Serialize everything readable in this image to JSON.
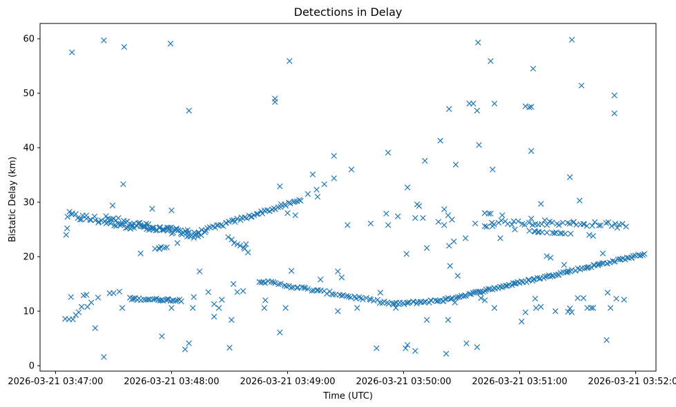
{
  "chart_data": {
    "type": "scatter",
    "title": "Detections in Delay",
    "xlabel": "Time (UTC)",
    "ylabel": "Bistatic Delay (km)",
    "marker": "x",
    "color": "#1f77b4",
    "grid": false,
    "x_unit": "seconds since 2026-03-21 03:47:00",
    "xlim": [
      -8.0,
      310.5
    ],
    "ylim": [
      -1.0,
      62.8
    ],
    "xticks": [
      {
        "value": 0,
        "label": "2026-03-21 03:47:00"
      },
      {
        "value": 60,
        "label": "2026-03-21 03:48:00"
      },
      {
        "value": 120,
        "label": "2026-03-21 03:49:00"
      },
      {
        "value": 180,
        "label": "2026-03-21 03:50:00"
      },
      {
        "value": 240,
        "label": "2026-03-21 03:51:00"
      },
      {
        "value": 300,
        "label": "2026-03-21 03:52:00"
      }
    ],
    "yticks": [
      {
        "value": 0,
        "label": "0"
      },
      {
        "value": 10,
        "label": "10"
      },
      {
        "value": 20,
        "label": "20"
      },
      {
        "value": 30,
        "label": "30"
      },
      {
        "value": 40,
        "label": "40"
      },
      {
        "value": 50,
        "label": "50"
      },
      {
        "value": 60,
        "label": "60"
      }
    ],
    "tracks": [
      {
        "name": "upper-track-A",
        "x_start": 6,
        "x_end": 68,
        "y_start": 27.6,
        "y_end": 24.2,
        "count": 60,
        "jitter": 0.7
      },
      {
        "name": "upper-track-A2",
        "x_start": 26,
        "x_end": 75,
        "y_start": 27.0,
        "y_end": 23.8,
        "count": 40,
        "jitter": 0.6
      },
      {
        "name": "upper-track-rising",
        "x_start": 68,
        "x_end": 127,
        "y_start": 23.8,
        "y_end": 30.4,
        "count": 55,
        "jitter": 0.3
      },
      {
        "name": "cluster-21",
        "x_start": 52,
        "x_end": 57,
        "y_start": 21.6,
        "y_end": 21.6,
        "count": 6,
        "jitter": 0.2
      },
      {
        "name": "cluster-23",
        "x_start": 89,
        "x_end": 100,
        "y_start": 23.4,
        "y_end": 21.0,
        "count": 8,
        "jitter": 0.3
      },
      {
        "name": "middle-constant-26",
        "x_start": 225,
        "x_end": 295,
        "y_start": 26.3,
        "y_end": 25.9,
        "count": 40,
        "jitter": 0.4
      },
      {
        "name": "middle-constant-24",
        "x_start": 245,
        "x_end": 266,
        "y_start": 24.6,
        "y_end": 24.2,
        "count": 10,
        "jitter": 0.2
      },
      {
        "name": "lower-track-12",
        "x_start": 38,
        "x_end": 65,
        "y_start": 12.3,
        "y_end": 12.0,
        "count": 30,
        "jitter": 0.2
      },
      {
        "name": "lower-track-descending",
        "x_start": 105,
        "x_end": 175,
        "y_start": 15.6,
        "y_end": 11.3,
        "count": 55,
        "jitter": 0.25
      },
      {
        "name": "lower-track-minimum",
        "x_start": 175,
        "x_end": 200,
        "y_start": 11.3,
        "y_end": 12.0,
        "count": 25,
        "jitter": 0.25
      },
      {
        "name": "lower-track-rising",
        "x_start": 200,
        "x_end": 305,
        "y_start": 12.0,
        "y_end": 20.5,
        "count": 110,
        "jitter": 0.2
      }
    ],
    "points": [
      [
        5.5,
        24.0
      ],
      [
        6.0,
        25.2
      ],
      [
        8.5,
        57.5
      ],
      [
        8.0,
        12.6
      ],
      [
        5.0,
        8.6
      ],
      [
        7.0,
        8.5
      ],
      [
        9.0,
        8.5
      ],
      [
        10.5,
        9.3
      ],
      [
        12.0,
        9.8
      ],
      [
        13.5,
        10.8
      ],
      [
        14.5,
        12.9
      ],
      [
        16.0,
        13.0
      ],
      [
        16.5,
        10.8
      ],
      [
        18.5,
        11.6
      ],
      [
        20.5,
        6.9
      ],
      [
        22.0,
        12.5
      ],
      [
        25.0,
        1.6
      ],
      [
        25.0,
        59.7
      ],
      [
        28.0,
        13.3
      ],
      [
        30.0,
        13.3
      ],
      [
        29.5,
        29.4
      ],
      [
        33.0,
        13.6
      ],
      [
        35.0,
        33.3
      ],
      [
        34.5,
        10.6
      ],
      [
        35.5,
        58.5
      ],
      [
        44.0,
        20.6
      ],
      [
        50.0,
        28.8
      ],
      [
        55.0,
        5.4
      ],
      [
        60.0,
        28.5
      ],
      [
        59.5,
        59.1
      ],
      [
        60.0,
        10.6
      ],
      [
        63.0,
        22.5
      ],
      [
        67.0,
        3.0
      ],
      [
        69.0,
        4.1
      ],
      [
        69.0,
        46.8
      ],
      [
        71.0,
        10.6
      ],
      [
        71.5,
        12.6
      ],
      [
        74.5,
        17.3
      ],
      [
        79.0,
        13.5
      ],
      [
        82.0,
        11.3
      ],
      [
        82.0,
        9.0
      ],
      [
        84.5,
        10.6
      ],
      [
        86.0,
        12.1
      ],
      [
        90.0,
        3.3
      ],
      [
        91.0,
        8.4
      ],
      [
        92.0,
        15.0
      ],
      [
        94.0,
        13.5
      ],
      [
        97.0,
        13.7
      ],
      [
        98.5,
        22.3
      ],
      [
        108.0,
        10.6
      ],
      [
        108.5,
        12.0
      ],
      [
        113.5,
        49.0
      ],
      [
        113.5,
        48.4
      ],
      [
        116.0,
        6.1
      ],
      [
        116.0,
        32.9
      ],
      [
        119.0,
        10.6
      ],
      [
        120.0,
        28.0
      ],
      [
        121.0,
        55.9
      ],
      [
        122.0,
        17.4
      ],
      [
        124.0,
        27.6
      ],
      [
        130.5,
        31.5
      ],
      [
        133.0,
        35.1
      ],
      [
        135.0,
        32.3
      ],
      [
        135.5,
        31.0
      ],
      [
        137.0,
        15.8
      ],
      [
        139.0,
        33.3
      ],
      [
        144.0,
        34.4
      ],
      [
        144.0,
        38.5
      ],
      [
        146.0,
        17.3
      ],
      [
        146.0,
        10.0
      ],
      [
        148.0,
        16.2
      ],
      [
        151.0,
        25.8
      ],
      [
        153.0,
        36.0
      ],
      [
        156.0,
        10.6
      ],
      [
        163.0,
        26.1
      ],
      [
        166.0,
        3.2
      ],
      [
        168.0,
        13.4
      ],
      [
        171.0,
        27.9
      ],
      [
        172.0,
        39.1
      ],
      [
        172.0,
        25.8
      ],
      [
        176.0,
        10.6
      ],
      [
        177.0,
        27.4
      ],
      [
        181.0,
        3.2
      ],
      [
        182.0,
        3.8
      ],
      [
        181.5,
        20.5
      ],
      [
        182.0,
        32.7
      ],
      [
        186.0,
        2.7
      ],
      [
        187.0,
        29.6
      ],
      [
        186.0,
        27.1
      ],
      [
        188.0,
        29.3
      ],
      [
        190.0,
        27.1
      ],
      [
        191.0,
        37.6
      ],
      [
        192.0,
        8.4
      ],
      [
        192.0,
        21.6
      ],
      [
        198.0,
        26.4
      ],
      [
        199.0,
        41.3
      ],
      [
        201.0,
        25.8
      ],
      [
        201.0,
        28.7
      ],
      [
        202.0,
        2.2
      ],
      [
        203.0,
        27.6
      ],
      [
        203.5,
        47.1
      ],
      [
        203.5,
        22.0
      ],
      [
        203.0,
        8.4
      ],
      [
        204.0,
        18.3
      ],
      [
        205.0,
        26.8
      ],
      [
        206.0,
        22.8
      ],
      [
        206.5,
        11.6
      ],
      [
        207.0,
        36.9
      ],
      [
        208.0,
        16.5
      ],
      [
        212.0,
        23.4
      ],
      [
        212.5,
        4.1
      ],
      [
        214.0,
        48.1
      ],
      [
        216.0,
        48.1
      ],
      [
        217.0,
        26.1
      ],
      [
        218.0,
        46.8
      ],
      [
        218.0,
        3.4
      ],
      [
        218.5,
        59.3
      ],
      [
        219.0,
        40.5
      ],
      [
        220.0,
        12.4
      ],
      [
        222.0,
        28.0
      ],
      [
        222.0,
        25.6
      ],
      [
        222.0,
        12.0
      ],
      [
        223.0,
        25.5
      ],
      [
        224.0,
        27.9
      ],
      [
        225.0,
        27.9
      ],
      [
        226.0,
        25.6
      ],
      [
        226.0,
        36.0
      ],
      [
        225.0,
        55.9
      ],
      [
        227.0,
        48.1
      ],
      [
        227.0,
        10.6
      ],
      [
        230.0,
        23.4
      ],
      [
        231.0,
        27.6
      ],
      [
        237.5,
        25.0
      ],
      [
        241.0,
        8.1
      ],
      [
        243.0,
        9.8
      ],
      [
        243.0,
        47.6
      ],
      [
        245.0,
        47.4
      ],
      [
        246.0,
        39.4
      ],
      [
        246.0,
        27.0
      ],
      [
        246.0,
        47.5
      ],
      [
        247.0,
        54.5
      ],
      [
        248.0,
        12.3
      ],
      [
        248.5,
        10.6
      ],
      [
        248.0,
        24.6
      ],
      [
        250.0,
        24.5
      ],
      [
        251.0,
        10.8
      ],
      [
        251.0,
        29.7
      ],
      [
        253.0,
        26.7
      ],
      [
        254.0,
        20.1
      ],
      [
        256.0,
        19.8
      ],
      [
        258.0,
        24.3
      ],
      [
        258.5,
        10.0
      ],
      [
        261.0,
        24.3
      ],
      [
        263.0,
        18.5
      ],
      [
        265.0,
        9.9
      ],
      [
        266.0,
        10.5
      ],
      [
        266.0,
        34.6
      ],
      [
        267.0,
        9.8
      ],
      [
        267.0,
        59.8
      ],
      [
        268.0,
        26.4
      ],
      [
        270.0,
        12.4
      ],
      [
        271.0,
        30.3
      ],
      [
        272.0,
        51.4
      ],
      [
        273.0,
        12.4
      ],
      [
        273.0,
        26.0
      ],
      [
        275.0,
        10.6
      ],
      [
        276.0,
        24.0
      ],
      [
        277.0,
        10.6
      ],
      [
        278.0,
        23.8
      ],
      [
        278.0,
        10.6
      ],
      [
        283.0,
        20.6
      ],
      [
        285.0,
        4.7
      ],
      [
        285.5,
        13.4
      ],
      [
        287.0,
        10.6
      ],
      [
        289.0,
        49.6
      ],
      [
        289.0,
        46.3
      ],
      [
        290.0,
        12.3
      ],
      [
        290.5,
        25.3
      ],
      [
        294.0,
        12.1
      ]
    ]
  }
}
